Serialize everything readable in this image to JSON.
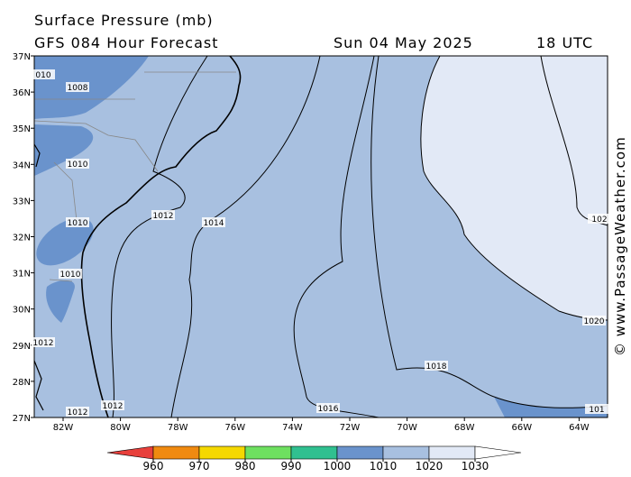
{
  "header": {
    "title": "Surface Pressure (mb)",
    "model": "GFS 084 Hour Forecast",
    "date": "Sun 04 May 2025",
    "time": "18 UTC"
  },
  "credit": "© www.PassageWeather.com",
  "map": {
    "lat_labels": [
      "37N",
      "36N",
      "35N",
      "34N",
      "33N",
      "32N",
      "31N",
      "30N",
      "29N",
      "28N",
      "27N"
    ],
    "lon_labels": [
      "82W",
      "80W",
      "78W",
      "76W",
      "74W",
      "72W",
      "70W",
      "68W",
      "66W",
      "64W"
    ],
    "isobar_labels": [
      "010",
      "1008",
      "1010",
      "1012",
      "1014",
      "1010",
      "1010",
      "1012",
      "1012",
      "1012",
      "1016",
      "1018",
      "1020",
      "102",
      "101"
    ]
  },
  "colorbar": {
    "ticks": [
      960,
      970,
      980,
      990,
      1000,
      1010,
      1020,
      1030
    ],
    "colors": [
      "#e8403c",
      "#f08a10",
      "#f5d800",
      "#6ee060",
      "#30c090",
      "#6a93cc",
      "#a8c0e0",
      "#e2e9f6",
      "#ffffff"
    ]
  }
}
